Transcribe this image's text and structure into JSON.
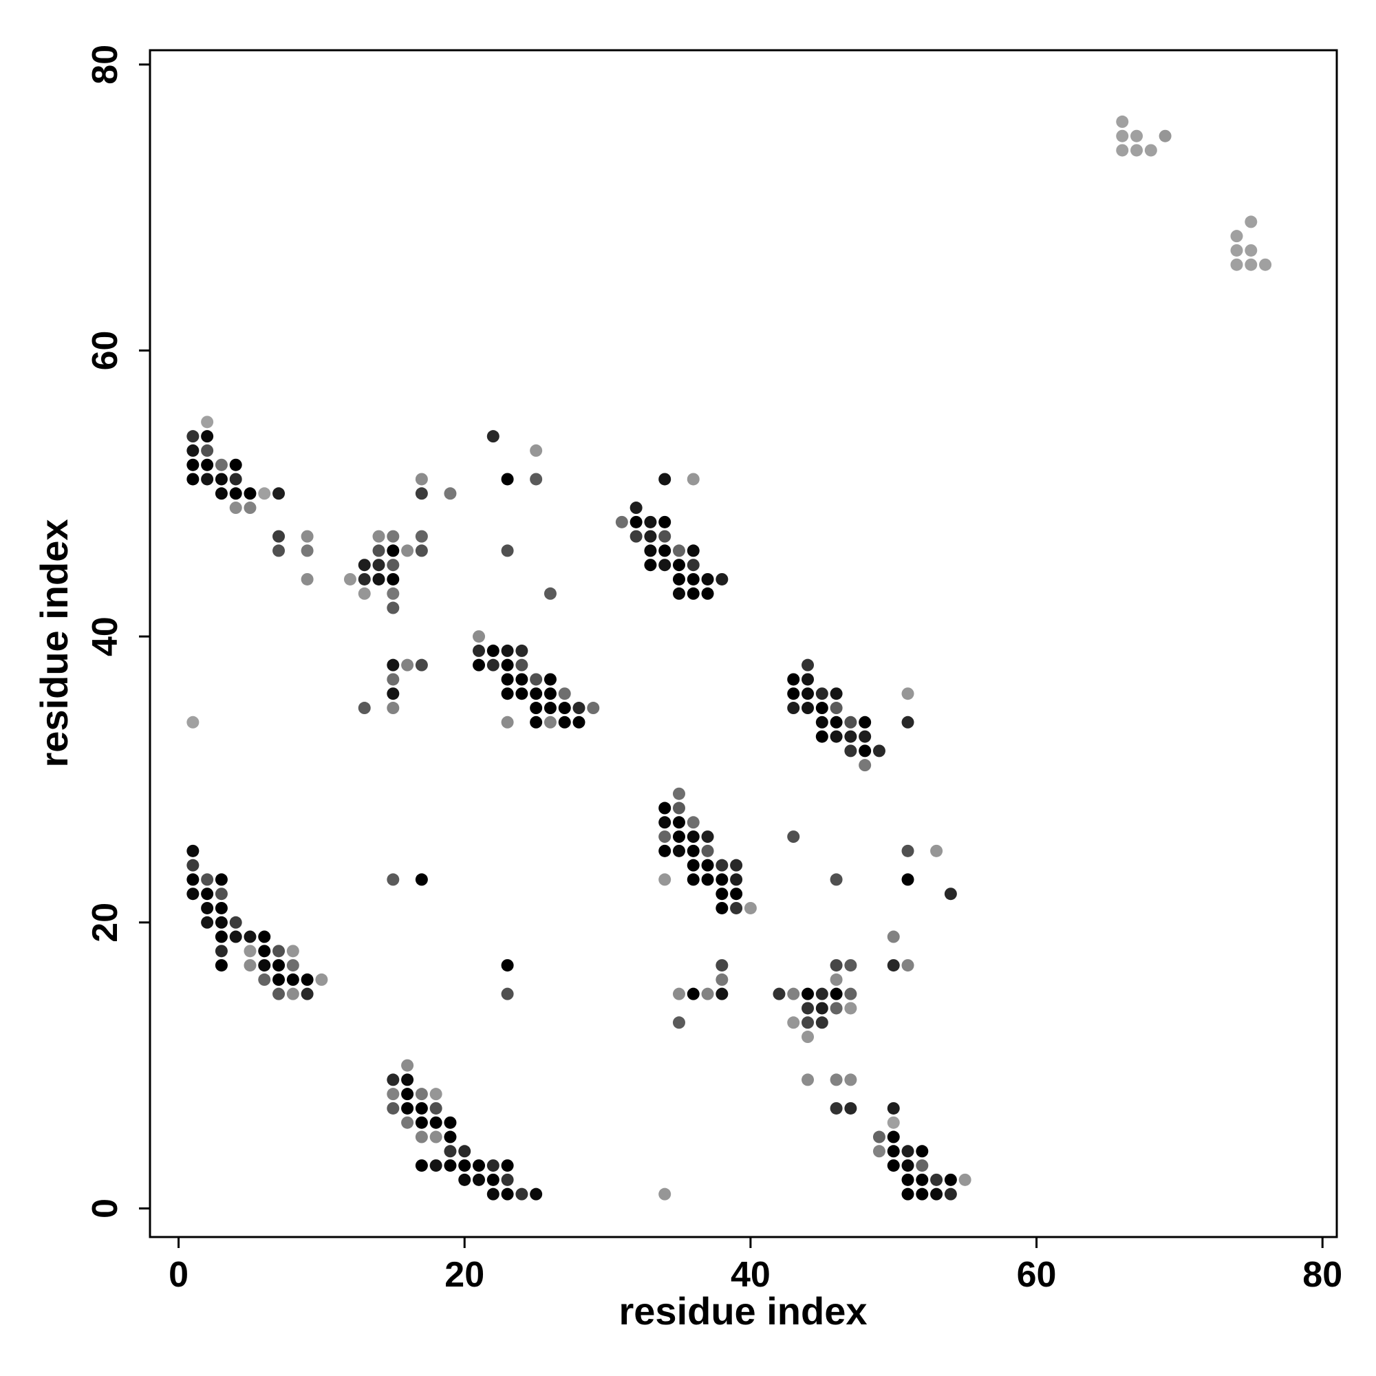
{
  "chart_data": {
    "type": "scatter",
    "title": "",
    "xlabel": "residue index",
    "ylabel": "residue index",
    "xlim": [
      -2,
      81
    ],
    "ylim": [
      -2,
      81
    ],
    "xticks": [
      0,
      20,
      40,
      60,
      80
    ],
    "yticks": [
      0,
      20,
      40,
      60,
      80
    ],
    "grid": false,
    "legend": "none",
    "color_scale": "grayscale; darker = higher value (1 = black, 0 = light gray)",
    "points": [
      [
        1,
        54,
        0.75
      ],
      [
        2,
        55,
        0.2
      ],
      [
        1,
        53,
        0.9
      ],
      [
        2,
        54,
        0.95
      ],
      [
        2,
        53,
        0.6
      ],
      [
        1,
        52,
        1
      ],
      [
        2,
        52,
        1
      ],
      [
        3,
        52,
        0.45
      ],
      [
        4,
        52,
        1
      ],
      [
        1,
        51,
        1
      ],
      [
        2,
        51,
        0.9
      ],
      [
        3,
        51,
        0.95
      ],
      [
        4,
        51,
        0.8
      ],
      [
        3,
        50,
        0.95
      ],
      [
        4,
        50,
        1
      ],
      [
        5,
        50,
        1
      ],
      [
        6,
        50,
        0.2
      ],
      [
        7,
        50,
        0.85
      ],
      [
        4,
        49,
        0.3
      ],
      [
        5,
        49,
        0.35
      ],
      [
        7,
        47,
        0.7
      ],
      [
        9,
        47,
        0.3
      ],
      [
        7,
        46,
        0.6
      ],
      [
        9,
        46,
        0.4
      ],
      [
        9,
        44,
        0.3
      ],
      [
        1,
        34,
        0.2
      ],
      [
        1,
        25,
        0.95
      ],
      [
        1,
        24,
        0.7
      ],
      [
        1,
        23,
        1
      ],
      [
        2,
        23,
        0.6
      ],
      [
        3,
        23,
        1
      ],
      [
        1,
        22,
        0.95
      ],
      [
        2,
        22,
        1
      ],
      [
        3,
        22,
        0.6
      ],
      [
        2,
        21,
        0.95
      ],
      [
        3,
        21,
        1
      ],
      [
        2,
        20,
        0.9
      ],
      [
        3,
        20,
        0.95
      ],
      [
        4,
        20,
        0.7
      ],
      [
        3,
        19,
        1
      ],
      [
        4,
        19,
        0.9
      ],
      [
        5,
        19,
        0.9
      ],
      [
        6,
        19,
        1
      ],
      [
        3,
        18,
        0.8
      ],
      [
        5,
        18,
        0.25
      ],
      [
        6,
        18,
        1
      ],
      [
        7,
        18,
        0.6
      ],
      [
        8,
        18,
        0.25
      ],
      [
        3,
        17,
        1
      ],
      [
        5,
        17,
        0.3
      ],
      [
        6,
        17,
        0.95
      ],
      [
        7,
        17,
        1
      ],
      [
        8,
        17,
        0.45
      ],
      [
        6,
        16,
        0.5
      ],
      [
        7,
        16,
        1
      ],
      [
        8,
        16,
        1
      ],
      [
        9,
        16,
        1
      ],
      [
        10,
        16,
        0.25
      ],
      [
        7,
        15,
        0.55
      ],
      [
        8,
        15,
        0.3
      ],
      [
        9,
        15,
        0.8
      ],
      [
        12,
        44,
        0.25
      ],
      [
        13,
        45,
        0.85
      ],
      [
        14,
        45,
        0.8
      ],
      [
        15,
        45,
        0.55
      ],
      [
        13,
        44,
        0.8
      ],
      [
        14,
        44,
        0.9
      ],
      [
        15,
        44,
        1
      ],
      [
        13,
        43,
        0.25
      ],
      [
        15,
        43,
        0.4
      ],
      [
        15,
        42,
        0.55
      ],
      [
        14,
        47,
        0.3
      ],
      [
        15,
        47,
        0.4
      ],
      [
        14,
        46,
        0.6
      ],
      [
        15,
        46,
        1
      ],
      [
        16,
        46,
        0.3
      ],
      [
        17,
        47,
        0.5
      ],
      [
        17,
        46,
        0.6
      ],
      [
        17,
        51,
        0.3
      ],
      [
        17,
        50,
        0.7
      ],
      [
        19,
        50,
        0.4
      ],
      [
        15,
        38,
        0.9
      ],
      [
        16,
        38,
        0.35
      ],
      [
        17,
        38,
        0.65
      ],
      [
        15,
        37,
        0.45
      ],
      [
        15,
        36,
        0.9
      ],
      [
        15,
        35,
        0.35
      ],
      [
        13,
        35,
        0.55
      ],
      [
        15,
        23,
        0.55
      ],
      [
        17,
        23,
        1
      ],
      [
        15,
        9,
        0.8
      ],
      [
        16,
        9,
        0.95
      ],
      [
        16,
        10,
        0.3
      ],
      [
        15,
        8,
        0.35
      ],
      [
        16,
        8,
        1
      ],
      [
        17,
        8,
        0.4
      ],
      [
        18,
        8,
        0.25
      ],
      [
        15,
        7,
        0.55
      ],
      [
        16,
        7,
        1
      ],
      [
        17,
        7,
        1
      ],
      [
        18,
        7,
        0.6
      ],
      [
        16,
        6,
        0.4
      ],
      [
        17,
        6,
        1
      ],
      [
        18,
        6,
        1
      ],
      [
        19,
        6,
        1
      ],
      [
        17,
        5,
        0.35
      ],
      [
        18,
        5,
        0.3
      ],
      [
        19,
        5,
        1
      ],
      [
        19,
        4,
        0.75
      ],
      [
        20,
        4,
        0.8
      ],
      [
        17,
        3,
        1
      ],
      [
        18,
        3,
        0.9
      ],
      [
        19,
        3,
        1
      ],
      [
        20,
        3,
        1
      ],
      [
        21,
        3,
        1
      ],
      [
        22,
        3,
        0.8
      ],
      [
        23,
        3,
        1
      ],
      [
        20,
        2,
        0.95
      ],
      [
        21,
        2,
        0.95
      ],
      [
        22,
        2,
        1
      ],
      [
        23,
        2,
        0.75
      ],
      [
        22,
        1,
        0.95
      ],
      [
        23,
        1,
        1
      ],
      [
        24,
        1,
        0.75
      ],
      [
        25,
        1,
        0.95
      ],
      [
        22,
        54,
        0.8
      ],
      [
        23,
        51,
        1
      ],
      [
        25,
        53,
        0.25
      ],
      [
        25,
        51,
        0.55
      ],
      [
        23,
        46,
        0.6
      ],
      [
        26,
        43,
        0.55
      ],
      [
        21,
        40,
        0.3
      ],
      [
        21,
        39,
        0.8
      ],
      [
        22,
        39,
        1
      ],
      [
        23,
        39,
        0.9
      ],
      [
        24,
        39,
        0.8
      ],
      [
        21,
        38,
        1
      ],
      [
        22,
        38,
        0.8
      ],
      [
        23,
        38,
        1
      ],
      [
        24,
        38,
        0.6
      ],
      [
        23,
        37,
        1
      ],
      [
        24,
        37,
        1
      ],
      [
        25,
        37,
        0.6
      ],
      [
        26,
        37,
        1
      ],
      [
        23,
        36,
        1
      ],
      [
        24,
        36,
        1
      ],
      [
        25,
        36,
        1
      ],
      [
        26,
        36,
        1
      ],
      [
        27,
        36,
        0.45
      ],
      [
        25,
        35,
        1
      ],
      [
        26,
        35,
        1
      ],
      [
        27,
        35,
        1
      ],
      [
        28,
        35,
        0.8
      ],
      [
        29,
        35,
        0.45
      ],
      [
        23,
        34,
        0.3
      ],
      [
        25,
        34,
        1
      ],
      [
        26,
        34,
        0.35
      ],
      [
        27,
        34,
        1
      ],
      [
        28,
        34,
        1
      ],
      [
        23,
        17,
        1
      ],
      [
        23,
        15,
        0.6
      ],
      [
        31,
        48,
        0.45
      ],
      [
        32,
        49,
        0.85
      ],
      [
        32,
        48,
        1
      ],
      [
        33,
        48,
        0.9
      ],
      [
        34,
        48,
        1
      ],
      [
        32,
        47,
        0.7
      ],
      [
        33,
        47,
        0.85
      ],
      [
        34,
        47,
        0.6
      ],
      [
        33,
        46,
        0.95
      ],
      [
        34,
        46,
        1
      ],
      [
        35,
        46,
        0.5
      ],
      [
        36,
        46,
        0.95
      ],
      [
        33,
        45,
        1
      ],
      [
        34,
        45,
        0.9
      ],
      [
        35,
        45,
        1
      ],
      [
        36,
        45,
        0.75
      ],
      [
        35,
        44,
        1
      ],
      [
        36,
        44,
        1
      ],
      [
        37,
        44,
        0.95
      ],
      [
        38,
        44,
        0.85
      ],
      [
        35,
        43,
        0.95
      ],
      [
        36,
        43,
        1
      ],
      [
        37,
        43,
        1
      ],
      [
        34,
        51,
        0.9
      ],
      [
        36,
        51,
        0.25
      ],
      [
        43,
        37,
        1
      ],
      [
        44,
        38,
        0.75
      ],
      [
        44,
        37,
        0.9
      ],
      [
        43,
        36,
        1
      ],
      [
        44,
        36,
        0.95
      ],
      [
        45,
        36,
        0.8
      ],
      [
        46,
        36,
        0.9
      ],
      [
        43,
        35,
        0.85
      ],
      [
        44,
        35,
        0.9
      ],
      [
        45,
        35,
        1
      ],
      [
        46,
        35,
        0.55
      ],
      [
        45,
        34,
        0.95
      ],
      [
        46,
        34,
        1
      ],
      [
        47,
        34,
        0.6
      ],
      [
        48,
        34,
        1
      ],
      [
        45,
        33,
        1
      ],
      [
        46,
        33,
        0.9
      ],
      [
        47,
        33,
        0.85
      ],
      [
        48,
        33,
        0.85
      ],
      [
        47,
        32,
        0.75
      ],
      [
        48,
        32,
        1
      ],
      [
        49,
        32,
        0.8
      ],
      [
        48,
        31,
        0.4
      ],
      [
        51,
        36,
        0.25
      ],
      [
        51,
        34,
        0.8
      ],
      [
        34,
        28,
        1
      ],
      [
        35,
        29,
        0.45
      ],
      [
        34,
        27,
        0.95
      ],
      [
        35,
        27,
        1
      ],
      [
        35,
        28,
        0.55
      ],
      [
        36,
        27,
        0.45
      ],
      [
        34,
        26,
        0.5
      ],
      [
        35,
        26,
        1
      ],
      [
        36,
        26,
        0.95
      ],
      [
        37,
        26,
        0.85
      ],
      [
        34,
        25,
        1
      ],
      [
        35,
        25,
        0.95
      ],
      [
        36,
        25,
        1
      ],
      [
        37,
        25,
        0.55
      ],
      [
        36,
        24,
        1
      ],
      [
        37,
        24,
        1
      ],
      [
        38,
        24,
        0.75
      ],
      [
        39,
        24,
        0.8
      ],
      [
        34,
        23,
        0.25
      ],
      [
        36,
        23,
        1
      ],
      [
        37,
        23,
        1
      ],
      [
        38,
        23,
        1
      ],
      [
        39,
        23,
        0.85
      ],
      [
        38,
        22,
        1
      ],
      [
        39,
        22,
        1
      ],
      [
        38,
        21,
        1
      ],
      [
        39,
        21,
        0.75
      ],
      [
        40,
        21,
        0.25
      ],
      [
        43,
        26,
        0.6
      ],
      [
        46,
        23,
        0.6
      ],
      [
        51,
        25,
        0.6
      ],
      [
        53,
        25,
        0.25
      ],
      [
        51,
        23,
        1
      ],
      [
        54,
        22,
        0.8
      ],
      [
        50,
        19,
        0.35
      ],
      [
        50,
        17,
        0.8
      ],
      [
        51,
        17,
        0.35
      ],
      [
        35,
        15,
        0.3
      ],
      [
        36,
        15,
        1
      ],
      [
        37,
        15,
        0.35
      ],
      [
        38,
        15,
        0.9
      ],
      [
        38,
        16,
        0.4
      ],
      [
        38,
        17,
        0.65
      ],
      [
        35,
        13,
        0.55
      ],
      [
        42,
        15,
        0.75
      ],
      [
        43,
        15,
        0.35
      ],
      [
        44,
        15,
        1
      ],
      [
        45,
        15,
        0.8
      ],
      [
        46,
        15,
        1
      ],
      [
        47,
        15,
        0.5
      ],
      [
        46,
        17,
        0.65
      ],
      [
        47,
        17,
        0.55
      ],
      [
        46,
        16,
        0.3
      ],
      [
        44,
        14,
        0.75
      ],
      [
        45,
        14,
        0.85
      ],
      [
        46,
        14,
        0.5
      ],
      [
        47,
        14,
        0.25
      ],
      [
        43,
        13,
        0.25
      ],
      [
        44,
        13,
        0.65
      ],
      [
        45,
        13,
        0.75
      ],
      [
        44,
        12,
        0.25
      ],
      [
        44,
        9,
        0.3
      ],
      [
        46,
        9,
        0.35
      ],
      [
        47,
        9,
        0.3
      ],
      [
        46,
        7,
        0.75
      ],
      [
        47,
        7,
        0.8
      ],
      [
        50,
        7,
        0.85
      ],
      [
        50,
        6,
        0.2
      ],
      [
        49,
        5,
        0.5
      ],
      [
        50,
        5,
        1
      ],
      [
        49,
        4,
        0.35
      ],
      [
        50,
        4,
        1
      ],
      [
        51,
        4,
        0.85
      ],
      [
        52,
        4,
        1
      ],
      [
        50,
        3,
        1
      ],
      [
        51,
        3,
        0.95
      ],
      [
        52,
        3,
        0.5
      ],
      [
        51,
        2,
        1
      ],
      [
        52,
        2,
        1
      ],
      [
        53,
        2,
        0.75
      ],
      [
        54,
        2,
        1
      ],
      [
        55,
        2,
        0.25
      ],
      [
        51,
        1,
        1
      ],
      [
        52,
        1,
        1
      ],
      [
        53,
        1,
        0.95
      ],
      [
        54,
        1,
        0.8
      ],
      [
        34,
        1,
        0.25
      ],
      [
        66,
        76,
        0.2
      ],
      [
        66,
        75,
        0.2
      ],
      [
        67,
        75,
        0.2
      ],
      [
        69,
        75,
        0.25
      ],
      [
        66,
        74,
        0.2
      ],
      [
        67,
        74,
        0.2
      ],
      [
        68,
        74,
        0.2
      ],
      [
        74,
        68,
        0.2
      ],
      [
        75,
        69,
        0.2
      ],
      [
        74,
        67,
        0.2
      ],
      [
        75,
        67,
        0.2
      ],
      [
        74,
        66,
        0.2
      ],
      [
        75,
        66,
        0.2
      ],
      [
        76,
        66,
        0.2
      ]
    ]
  }
}
